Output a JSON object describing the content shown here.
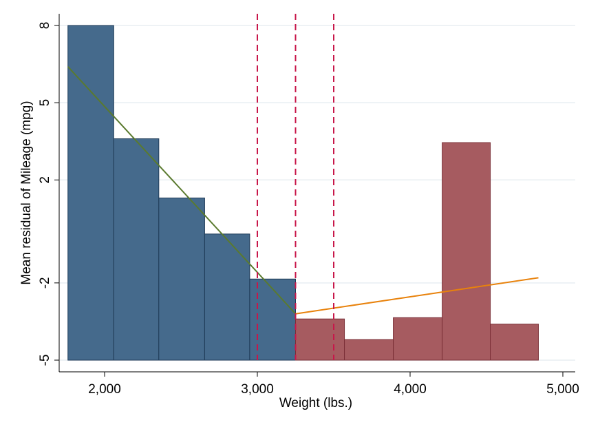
{
  "chart_data": {
    "type": "bar",
    "xlabel": "Weight (lbs.)",
    "ylabel": "Mean residual of Mileage (mpg)",
    "xlim": [
      1750,
      5000
    ],
    "ylim": [
      -5,
      8
    ],
    "x_ticks": [
      {
        "value": 2000,
        "label": "2,000"
      },
      {
        "value": 3000,
        "label": "3,000"
      },
      {
        "value": 4000,
        "label": "4,000"
      },
      {
        "value": 5000,
        "label": "5,000"
      }
    ],
    "y_ticks": [
      {
        "value": 8,
        "label": "8"
      },
      {
        "value": 5,
        "label": "5"
      },
      {
        "value": 2,
        "label": "2"
      },
      {
        "value": -2,
        "label": "-2"
      },
      {
        "value": -5,
        "label": "-5"
      }
    ],
    "grid": true,
    "colors": {
      "left_bars": "#456a8c",
      "left_bar_edge": "#1f3b57",
      "right_bars": "#a65b60",
      "right_bar_edge": "#7a2f36",
      "left_fit": "#5a7a2e",
      "right_fit": "#e8820c",
      "cutoff_lines": "#c8174a",
      "grid": "#e8eef2"
    },
    "series": [
      {
        "bins": [
          {
            "x0": 1760,
            "x1": 2060,
            "value": 8.0
          },
          {
            "x0": 2060,
            "x1": 2355,
            "value": 3.6
          },
          {
            "x0": 2355,
            "x1": 2655,
            "value": 1.3
          },
          {
            "x0": 2655,
            "x1": 2950,
            "value": -0.1
          },
          {
            "x0": 2950,
            "x1": 3250,
            "value": -1.85
          }
        ]
      },
      {
        "bins": [
          {
            "x0": 3250,
            "x1": 3570,
            "value": -3.4
          },
          {
            "x0": 3570,
            "x1": 3890,
            "value": -4.2
          },
          {
            "x0": 3890,
            "x1": 4210,
            "value": -3.35
          },
          {
            "x0": 4210,
            "x1": 4525,
            "value": 3.45
          },
          {
            "x0": 4525,
            "x1": 4840,
            "value": -3.6
          }
        ]
      }
    ],
    "fit_lines": [
      {
        "x": [
          1760,
          3250
        ],
        "y": [
          6.4,
          -3.2
        ]
      },
      {
        "x": [
          3250,
          4840
        ],
        "y": [
          -3.2,
          -1.8
        ]
      }
    ],
    "vertical_lines": [
      3000,
      3250,
      3500
    ]
  }
}
